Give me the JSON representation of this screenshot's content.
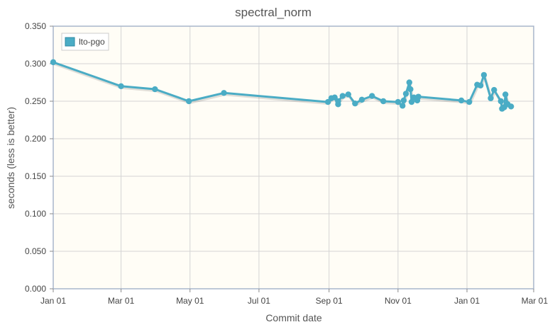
{
  "chart_data": {
    "type": "line",
    "title": "spectral_norm",
    "xlabel": "Commit date",
    "ylabel": "seconds (less is better)",
    "ylim": [
      0,
      0.35
    ],
    "yticks": [
      "0.000",
      "0.050",
      "0.100",
      "0.150",
      "0.200",
      "0.250",
      "0.300",
      "0.350"
    ],
    "xticks": [
      {
        "label": "Jan 01",
        "date": "2016-01-01"
      },
      {
        "label": "Mar 01",
        "date": "2016-03-01"
      },
      {
        "label": "May 01",
        "date": "2016-05-01"
      },
      {
        "label": "Jul 01",
        "date": "2016-07-01"
      },
      {
        "label": "Sep 01",
        "date": "2016-09-01"
      },
      {
        "label": "Nov 01",
        "date": "2016-11-01"
      },
      {
        "label": "Jan 01",
        "date": "2017-01-01"
      },
      {
        "label": "Mar 01",
        "date": "2017-03-01"
      }
    ],
    "xlim": [
      "2016-01-01",
      "2017-03-01"
    ],
    "grid": true,
    "legend": "top-left",
    "series": [
      {
        "name": "lto-pgo",
        "color": "#4aacc5",
        "points": [
          [
            "2016-01-01",
            0.302
          ],
          [
            "2016-03-01",
            0.27
          ],
          [
            "2016-03-31",
            0.266
          ],
          [
            "2016-04-30",
            0.25
          ],
          [
            "2016-05-31",
            0.261
          ],
          [
            "2016-08-31",
            0.249
          ],
          [
            "2016-09-03",
            0.254
          ],
          [
            "2016-09-06",
            0.255
          ],
          [
            "2016-09-09",
            0.246
          ],
          [
            "2016-09-09",
            0.25
          ],
          [
            "2016-09-13",
            0.257
          ],
          [
            "2016-09-18",
            0.259
          ],
          [
            "2016-09-24",
            0.247
          ],
          [
            "2016-09-30",
            0.252
          ],
          [
            "2016-10-09",
            0.257
          ],
          [
            "2016-10-19",
            0.25
          ],
          [
            "2016-11-01",
            0.249
          ],
          [
            "2016-11-05",
            0.244
          ],
          [
            "2016-11-06",
            0.251
          ],
          [
            "2016-11-08",
            0.26
          ],
          [
            "2016-11-11",
            0.275
          ],
          [
            "2016-11-12",
            0.266
          ],
          [
            "2016-11-13",
            0.249
          ],
          [
            "2016-11-15",
            0.255
          ],
          [
            "2016-11-18",
            0.251
          ],
          [
            "2016-11-19",
            0.256
          ],
          [
            "2016-12-27",
            0.251
          ],
          [
            "2017-01-03",
            0.249
          ],
          [
            "2017-01-10",
            0.272
          ],
          [
            "2017-01-13",
            0.271
          ],
          [
            "2017-01-16",
            0.285
          ],
          [
            "2017-01-22",
            0.254
          ],
          [
            "2017-01-25",
            0.265
          ],
          [
            "2017-01-31",
            0.25
          ],
          [
            "2017-02-01",
            0.24
          ],
          [
            "2017-02-03",
            0.242
          ],
          [
            "2017-02-04",
            0.259
          ],
          [
            "2017-02-06",
            0.246
          ],
          [
            "2017-02-09",
            0.243
          ]
        ]
      }
    ]
  }
}
